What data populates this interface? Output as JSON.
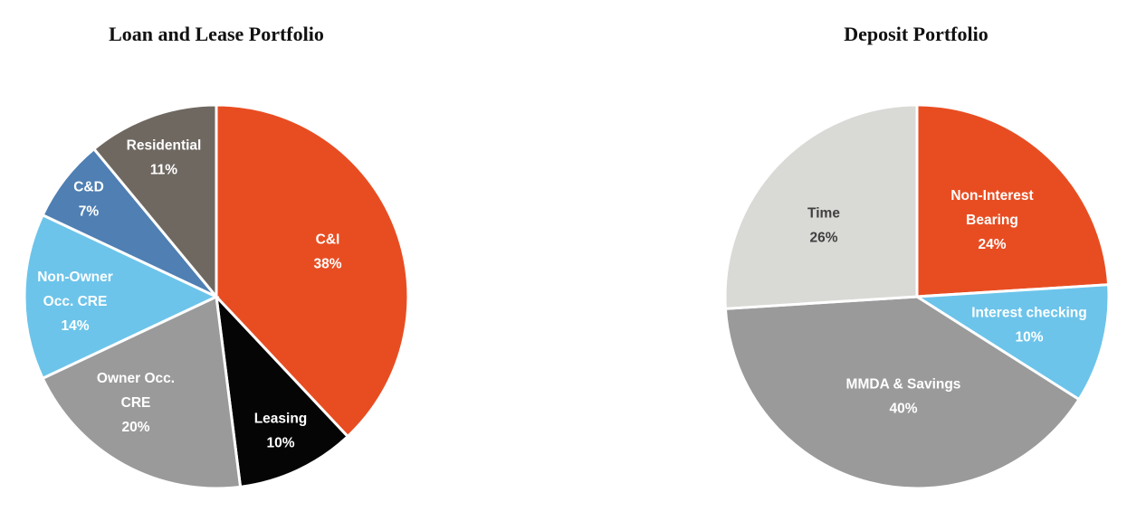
{
  "chart_data": [
    {
      "type": "pie",
      "title": "Loan and Lease Portfolio",
      "slices": [
        {
          "label": [
            "C&I"
          ],
          "value": 38,
          "value_label": "38%",
          "color": "#e84d22",
          "text_color": "#ffffff"
        },
        {
          "label": [
            "Leasing"
          ],
          "value": 10,
          "value_label": "10%",
          "color": "#050505",
          "text_color": "#ffffff"
        },
        {
          "label": [
            "Owner Occ.",
            "CRE"
          ],
          "value": 20,
          "value_label": "20%",
          "color": "#9a9a9a",
          "text_color": "#ffffff"
        },
        {
          "label": [
            "Non-Owner",
            "Occ. CRE"
          ],
          "value": 14,
          "value_label": "14%",
          "color": "#6cc4ea",
          "text_color": "#ffffff"
        },
        {
          "label": [
            "C&D"
          ],
          "value": 7,
          "value_label": "7%",
          "color": "#4f7fb3",
          "text_color": "#ffffff"
        },
        {
          "label": [
            "Residential"
          ],
          "value": 11,
          "value_label": "11%",
          "color": "#6f6861",
          "text_color": "#ffffff"
        }
      ]
    },
    {
      "type": "pie",
      "title": "Deposit Portfolio",
      "slices": [
        {
          "label": [
            "Non-Interest",
            "Bearing"
          ],
          "value": 24,
          "value_label": "24%",
          "color": "#e84d22",
          "text_color": "#ffffff"
        },
        {
          "label": [
            "Interest checking"
          ],
          "value": 10,
          "value_label": "10%",
          "color": "#6cc4ea",
          "text_color": "#ffffff"
        },
        {
          "label": [
            "MMDA & Savings"
          ],
          "value": 40,
          "value_label": "40%",
          "color": "#9a9a9a",
          "text_color": "#ffffff"
        },
        {
          "label": [
            "Time"
          ],
          "value": 26,
          "value_label": "26%",
          "color": "#d9d9d6",
          "text_color": "#404040"
        }
      ]
    }
  ]
}
